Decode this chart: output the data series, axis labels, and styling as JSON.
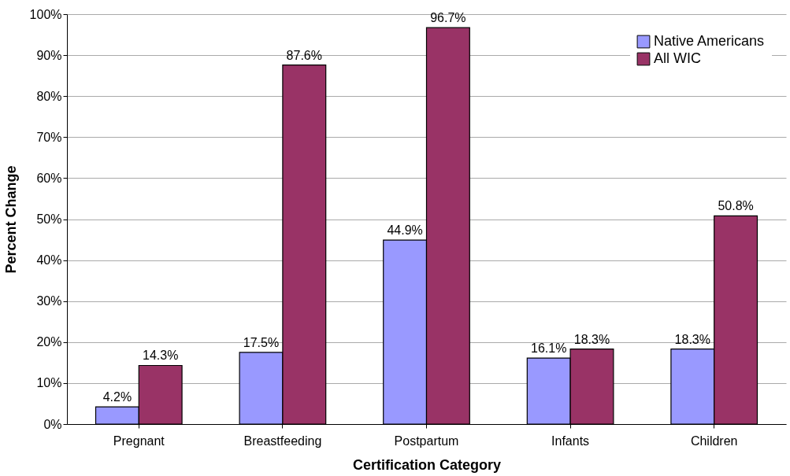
{
  "chart_data": {
    "type": "bar",
    "xlabel": "Certification Category",
    "ylabel": "Percent Change",
    "categories": [
      "Pregnant",
      "Breastfeeding",
      "Postpartum",
      "Infants",
      "Children"
    ],
    "series": [
      {
        "name": "Native Americans",
        "color": "#9999ff",
        "values": [
          4.2,
          17.5,
          44.9,
          16.1,
          18.3
        ],
        "value_labels": [
          "4.2%",
          "17.5%",
          "44.9%",
          "16.1%",
          "18.3%"
        ]
      },
      {
        "name": "All WIC",
        "color": "#993366",
        "values": [
          14.3,
          87.6,
          96.7,
          18.3,
          50.8
        ],
        "value_labels": [
          "14.3%",
          "87.6%",
          "96.7%",
          "18.3%",
          "50.8%"
        ]
      }
    ],
    "ylim": [
      0,
      100
    ],
    "yticks": [
      {
        "value": 0,
        "label": "0%"
      },
      {
        "value": 10,
        "label": "10%"
      },
      {
        "value": 20,
        "label": "20%"
      },
      {
        "value": 30,
        "label": "30%"
      },
      {
        "value": 40,
        "label": "40%"
      },
      {
        "value": 50,
        "label": "50%"
      },
      {
        "value": 60,
        "label": "60%"
      },
      {
        "value": 70,
        "label": "70%"
      },
      {
        "value": 80,
        "label": "80%"
      },
      {
        "value": 90,
        "label": "90%"
      },
      {
        "value": 100,
        "label": "100%"
      }
    ],
    "grid": "y",
    "legend": "top right"
  }
}
